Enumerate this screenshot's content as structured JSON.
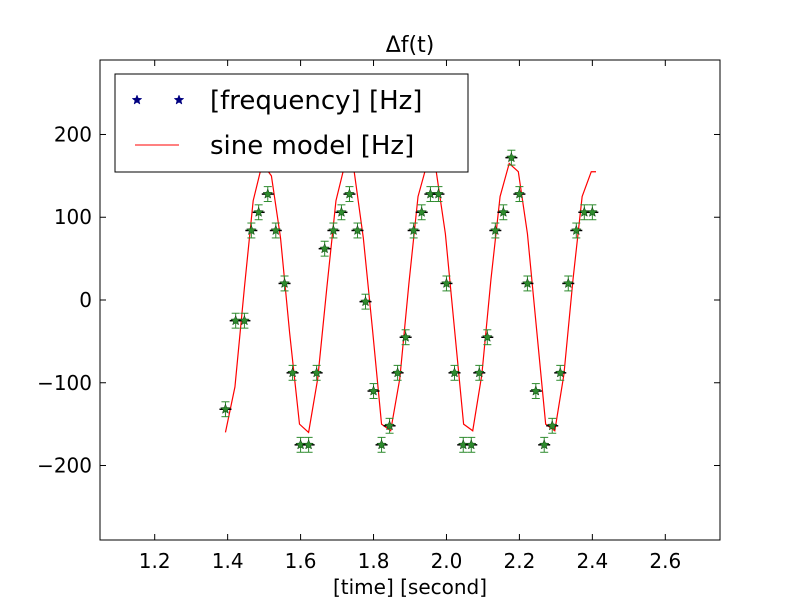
{
  "chart_data": {
    "type": "scatter",
    "title": "Δf(t)",
    "xlabel": "[time] [second]",
    "ylabel": "",
    "xlim": [
      1.05,
      2.75
    ],
    "ylim": [
      -290,
      290
    ],
    "xticks": [
      1.2,
      1.4,
      1.6,
      1.8,
      2.0,
      2.2,
      2.4,
      2.6
    ],
    "xtick_labels": [
      "1.2",
      "1.4",
      "1.6",
      "1.8",
      "2.0",
      "2.2",
      "2.4",
      "2.6"
    ],
    "yticks": [
      -200,
      -100,
      0,
      100,
      200
    ],
    "ytick_labels": [
      "−200",
      "−100",
      "0",
      "100",
      "200"
    ],
    "grid": false,
    "legend_position": "top-left",
    "series": [
      {
        "name": "[frequency] [Hz]",
        "kind": "scatter-errorbar",
        "marker": "star",
        "color": "#000080",
        "errorbar_color": "#2e8b2e",
        "y_error": 9,
        "x": [
          1.394,
          1.422,
          1.446,
          1.465,
          1.485,
          1.51,
          1.532,
          1.556,
          1.578,
          1.6,
          1.622,
          1.644,
          1.666,
          1.69,
          1.712,
          1.734,
          1.756,
          1.778,
          1.8,
          1.822,
          1.844,
          1.866,
          1.888,
          1.91,
          1.932,
          1.956,
          1.978,
          2.0,
          2.022,
          2.046,
          2.068,
          2.09,
          2.112,
          2.134,
          2.156,
          2.178,
          2.2,
          2.222,
          2.245,
          2.268,
          2.29,
          2.312,
          2.334,
          2.356,
          2.378,
          2.4
        ],
        "y": [
          -132,
          -25,
          -25,
          84,
          106,
          128,
          84,
          20,
          -88,
          -175,
          -175,
          -88,
          62,
          84,
          106,
          128,
          84,
          -2,
          -110,
          -175,
          -152,
          -88,
          -45,
          84,
          106,
          128,
          128,
          20,
          -88,
          -175,
          -175,
          -88,
          -45,
          84,
          106,
          172,
          128,
          20,
          -110,
          -175,
          -152,
          -88,
          20,
          84,
          106,
          106
        ]
      },
      {
        "name": "sine model [Hz]",
        "kind": "line",
        "color": "#ff0000",
        "x": [
          1.394,
          1.42,
          1.446,
          1.47,
          1.495,
          1.52,
          1.545,
          1.57,
          1.597,
          1.622,
          1.647,
          1.672,
          1.697,
          1.722,
          1.747,
          1.772,
          1.797,
          1.822,
          1.847,
          1.872,
          1.897,
          1.922,
          1.947,
          1.972,
          1.997,
          2.022,
          2.047,
          2.072,
          2.097,
          2.122,
          2.147,
          2.172,
          2.197,
          2.222,
          2.247,
          2.272,
          2.297,
          2.322,
          2.347,
          2.372,
          2.397,
          2.41
        ],
        "y": [
          -160,
          -105,
          15,
          120,
          165,
          150,
          75,
          -40,
          -150,
          -160,
          -95,
          15,
          120,
          165,
          155,
          75,
          -35,
          -150,
          -158,
          -95,
          20,
          125,
          165,
          155,
          80,
          -35,
          -150,
          -158,
          -90,
          25,
          125,
          165,
          155,
          80,
          -35,
          -150,
          -158,
          -90,
          25,
          125,
          155,
          155
        ]
      }
    ]
  }
}
